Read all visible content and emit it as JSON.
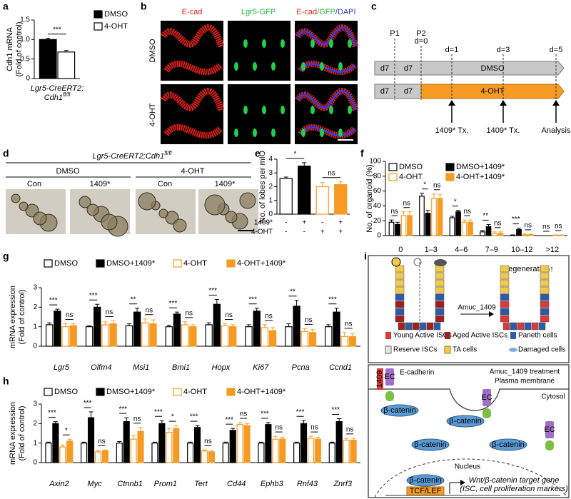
{
  "panel_labels": [
    "a",
    "b",
    "c",
    "d",
    "e",
    "f",
    "g",
    "h",
    "i"
  ],
  "chart_data": [
    {
      "type": "bar",
      "ylabel": [
        "Cdh1 mRNA",
        "(Fold of control)"
      ],
      "xlabel": [
        "Lgr5-CreERT2;",
        "Cdh1",
        "fl/fl"
      ],
      "categories": [
        null
      ],
      "series": [
        {
          "name": "DMSO",
          "color": "#000000",
          "fill": "#000000",
          "values": [
            1.0
          ],
          "errors": [
            0.03
          ]
        },
        {
          "name": "4-OHT",
          "color": "#000000",
          "fill": "#ffffff",
          "values": [
            0.68
          ],
          "errors": [
            0.04
          ]
        }
      ],
      "significance": [
        [
          "***"
        ]
      ],
      "ylim": [
        0,
        1.5
      ],
      "yticks": [
        0,
        0.5,
        {
          "value": 1,
          "label": "1.0"
        },
        1.5
      ]
    },
    {
      "type": "bar",
      "ylabel": [
        "No. of lobes per mIO"
      ],
      "values": [
        2.6,
        3.5,
        2.0,
        2.15
      ],
      "errors": [
        0.1,
        0.25,
        0.3,
        0.2
      ],
      "fills": [
        "#ffffff",
        "#000000",
        "#ffffff",
        "#f59b23"
      ],
      "strokes": [
        "#000000",
        "#000000",
        "#f59b23",
        "#f59b23"
      ],
      "conditions": [
        {
          "label": "1409*",
          "signs": [
            "-",
            "+",
            "-",
            "+"
          ]
        },
        {
          "label": "4-OHT",
          "signs": [
            "-",
            "-",
            "+",
            "+"
          ]
        }
      ],
      "significance": [
        "*",
        "ns"
      ],
      "ylim": [
        0,
        4
      ],
      "yticks": [
        0,
        1,
        2,
        3,
        4
      ]
    },
    {
      "type": "bar",
      "ylabel": [
        "No. of organoid (%)"
      ],
      "categories": [
        "0",
        "1–3",
        "4–6",
        "7–9",
        "10–12",
        ">12"
      ],
      "series": [
        {
          "name": "DMSO",
          "color": "#000000",
          "fill": "#ffffff",
          "values": [
            18,
            53,
            24,
            5,
            0.5,
            0
          ],
          "errors": [
            3,
            4,
            2,
            2,
            0.5,
            0
          ]
        },
        {
          "name": "DMSO+1409*",
          "color": "#000000",
          "fill": "#000000",
          "values": [
            15,
            30,
            32,
            12,
            8,
            0
          ],
          "errors": [
            3,
            4,
            2,
            3,
            2,
            0
          ]
        },
        {
          "name": "4-OHT",
          "color": "#f59b23",
          "fill": "#ffffff",
          "values": [
            27,
            50,
            18,
            3,
            1,
            0.5
          ],
          "errors": [
            5,
            6,
            3,
            2,
            1,
            0.5
          ]
        },
        {
          "name": "4-OHT+1409*",
          "color": "#f59b23",
          "fill": "#f59b23",
          "values": [
            27,
            50,
            18,
            3,
            1,
            0.5
          ],
          "errors": [
            5,
            5,
            3,
            2,
            1,
            0.5
          ]
        }
      ],
      "significance": [
        [
          "ns",
          "ns"
        ],
        [
          "*",
          "ns"
        ],
        [
          "*",
          "ns"
        ],
        [
          "**",
          "ns"
        ],
        [
          "***",
          "ns"
        ],
        [
          "ns",
          "ns"
        ]
      ],
      "ylim": [
        0,
        100
      ],
      "yticks": [
        0,
        20,
        40,
        60,
        80,
        100
      ]
    },
    {
      "type": "bar",
      "ylabel": [
        "mRNA expression",
        "(Fold of control)"
      ],
      "categories": [
        "Lgr5",
        "Olfm4",
        "Msi1",
        "Bmi1",
        "Hopx",
        "Ki67",
        "Pcna",
        "Ccnd1"
      ],
      "series": [
        {
          "name": "DMSO",
          "color": "#000000",
          "fill": "#ffffff",
          "values": [
            1.1,
            1.0,
            1.05,
            1.0,
            1.1,
            1.0,
            1.0,
            1.0
          ],
          "errors": [
            0.1,
            0.05,
            0.1,
            0.08,
            0.1,
            0.1,
            0.15,
            0.1
          ]
        },
        {
          "name": "DMSO+1409*",
          "color": "#000000",
          "fill": "#000000",
          "values": [
            1.8,
            2.0,
            1.75,
            1.65,
            2.15,
            1.8,
            2.05,
            1.75
          ],
          "errors": [
            0.1,
            0.15,
            0.2,
            0.1,
            0.25,
            0.15,
            0.3,
            0.2
          ]
        },
        {
          "name": "4-OHT",
          "color": "#f59b23",
          "fill": "#ffffff",
          "values": [
            1.0,
            1.1,
            1.2,
            1.1,
            1.05,
            0.95,
            0.75,
            0.5
          ],
          "errors": [
            0.15,
            0.15,
            0.2,
            0.15,
            0.1,
            0.15,
            0.15,
            0.2
          ]
        },
        {
          "name": "4-OHT+1409*",
          "color": "#f59b23",
          "fill": "#f59b23",
          "values": [
            1.05,
            1.15,
            1.15,
            1.0,
            1.0,
            0.8,
            0.7,
            0.5
          ],
          "errors": [
            0.1,
            0.15,
            0.2,
            0.1,
            0.1,
            0.15,
            0.15,
            0.15
          ]
        }
      ],
      "significance": [
        [
          "***",
          "ns"
        ],
        [
          "***",
          "ns"
        ],
        [
          "**",
          "ns"
        ],
        [
          "***",
          "ns"
        ],
        [
          "***",
          "ns"
        ],
        [
          "***",
          "ns"
        ],
        [
          "**",
          "ns"
        ],
        [
          "***",
          "ns"
        ]
      ],
      "ylim": [
        0,
        3
      ],
      "yticks": [
        0,
        1,
        2,
        3
      ]
    },
    {
      "type": "bar",
      "ylabel": [
        "mRNA expression",
        "(Fold of control)"
      ],
      "categories": [
        "Axin2",
        "Myc",
        "Ctnnb1",
        "Prom1",
        "Tert",
        "Cd44",
        "Ephb3",
        "Rnf43",
        "Znrf3"
      ],
      "series": [
        {
          "name": "DMSO",
          "color": "#000000",
          "fill": "#ffffff",
          "values": [
            1.0,
            1.0,
            1.0,
            1.0,
            1.0,
            1.0,
            1.0,
            1.0,
            1.0
          ],
          "errors": [
            0.05,
            0.05,
            0.08,
            0.05,
            0.05,
            0.05,
            0.05,
            0.05,
            0.05
          ]
        },
        {
          "name": "DMSO+1409*",
          "color": "#000000",
          "fill": "#000000",
          "values": [
            2.0,
            2.3,
            2.1,
            2.0,
            1.8,
            1.65,
            1.95,
            2.0,
            2.1
          ],
          "errors": [
            0.1,
            0.3,
            0.2,
            0.15,
            0.1,
            0.1,
            0.1,
            0.15,
            0.15
          ]
        },
        {
          "name": "4-OHT",
          "color": "#f59b23",
          "fill": "#ffffff",
          "values": [
            0.8,
            0.55,
            1.2,
            1.55,
            0.6,
            1.95,
            1.2,
            1.25,
            1.15
          ],
          "errors": [
            0.1,
            0.05,
            0.2,
            0.2,
            0.05,
            0.1,
            0.15,
            0.1,
            0.1
          ]
        },
        {
          "name": "4-OHT+1409*",
          "color": "#f59b23",
          "fill": "#f59b23",
          "values": [
            1.1,
            0.6,
            1.6,
            1.75,
            0.55,
            1.9,
            1.2,
            1.2,
            1.15
          ],
          "errors": [
            0.1,
            0.05,
            0.2,
            0.15,
            0.05,
            0.1,
            0.1,
            0.1,
            0.1
          ]
        }
      ],
      "significance": [
        [
          "***",
          "*"
        ],
        [
          "***",
          "ns"
        ],
        [
          "***",
          "ns"
        ],
        [
          "***",
          "*"
        ],
        [
          "***",
          "ns"
        ],
        [
          "***",
          "ns"
        ],
        [
          "***",
          "ns"
        ],
        [
          "***",
          "ns"
        ],
        [
          "***",
          "ns"
        ]
      ],
      "ylim": [
        0,
        3
      ],
      "yticks": [
        0,
        1,
        2,
        3
      ]
    }
  ],
  "panel_b": {
    "columns": [
      "E-cad",
      "Lgr5-GFP"
    ],
    "merge": [
      "E-cad",
      "/GFP",
      "/DAPI"
    ],
    "rows": [
      "DMSO",
      "4-OHT"
    ]
  },
  "panel_c": {
    "passages": [
      "P1",
      "P2"
    ],
    "days": [
      "d=0",
      "d=1",
      "d=3",
      "d=5"
    ],
    "rows": [
      [
        "d7",
        "d7",
        "DMSO"
      ],
      [
        "d7",
        "d7",
        "4-OHT"
      ]
    ],
    "events": [
      "1409* Tx.",
      "1409* Tx.",
      "Analysis"
    ]
  },
  "panel_d": {
    "genotype": [
      "Lgr5-CreERT2;Cdh1",
      "fl/fl"
    ],
    "groups": [
      "DMSO",
      "4-OHT"
    ],
    "conditions": [
      "Con",
      "1409*",
      "Con",
      "1409*"
    ]
  },
  "panel_i": {
    "top": {
      "title": "Regeneration↑",
      "arrow_label": "Amuc_1409",
      "legend": [
        "Young Active ISCs",
        "Aged Active ISCs",
        "Paneth cells",
        "Reserve ISCs",
        "TA cells",
        "Damaged cells"
      ]
    },
    "bottom": {
      "drug": "1409",
      "receptor": "E-cadherin",
      "domain": "EC",
      "treatment": "Amuc_1409 treatment",
      "membrane": "Plasma membrane",
      "cytosol": "Cytosol",
      "beta_catenin": "β-catenin",
      "nucleus": "Nucleus",
      "tf": "TCF/LEF",
      "target": "Wnt/β-catenin target gene",
      "target_note": "(ISC, cell proliferation markers)"
    }
  }
}
